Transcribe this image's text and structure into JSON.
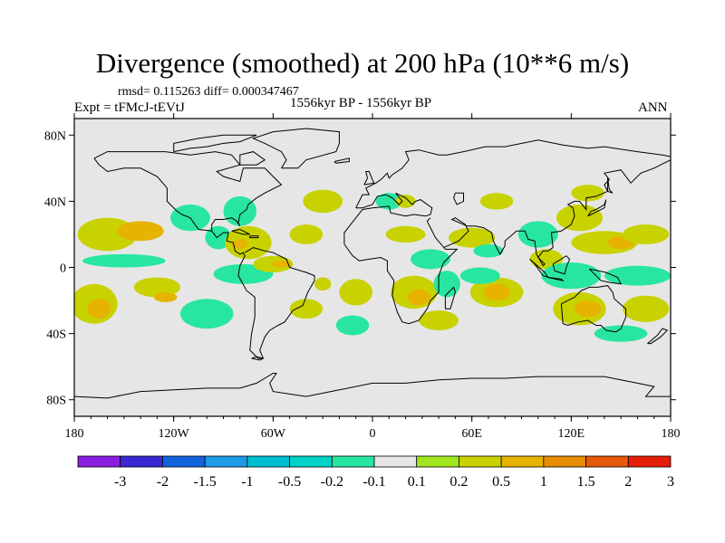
{
  "chart_data": {
    "type": "heatmap",
    "title": "Divergence (smoothed) at 200 hPa (10**6 m/s)",
    "stats": "rmsd= 0.115263 diff= 0.000347467",
    "experiment": "Expt = tFMcJ-tEVtJ",
    "period": "1556kyr BP - 1556kyr BP",
    "season": "ANN",
    "xlim": [
      -180,
      180
    ],
    "ylim": [
      -90,
      90
    ],
    "x_ticks": [
      {
        "value": -180,
        "label": "180"
      },
      {
        "value": -120,
        "label": "120W"
      },
      {
        "value": -60,
        "label": "60W"
      },
      {
        "value": 0,
        "label": "0"
      },
      {
        "value": 60,
        "label": "60E"
      },
      {
        "value": 120,
        "label": "120E"
      },
      {
        "value": 180,
        "label": "180"
      }
    ],
    "y_ticks": [
      {
        "value": 80,
        "label": "80N"
      },
      {
        "value": 40,
        "label": "40N"
      },
      {
        "value": 0,
        "label": "0"
      },
      {
        "value": -40,
        "label": "40S"
      },
      {
        "value": -80,
        "label": "80S"
      }
    ],
    "colorbar": {
      "labels": [
        "-3",
        "-2",
        "-1.5",
        "-1",
        "-0.5",
        "-0.2",
        "-0.1",
        "0.1",
        "0.2",
        "0.5",
        "1",
        "1.5",
        "2",
        "3"
      ],
      "colors": [
        "#8a1ee0",
        "#3c28d2",
        "#1464dc",
        "#1e9be6",
        "#00bed2",
        "#00d2c8",
        "#28e6a0",
        "#e6e6e6",
        "#a0e61e",
        "#c8d200",
        "#e6b400",
        "#e68c00",
        "#e65a0a",
        "#e61e0a"
      ]
    },
    "background_color": "#e6e6e6",
    "regions": [
      {
        "lon": -160,
        "lat": 20,
        "rx": 18,
        "ry": 10,
        "value": 0.2
      },
      {
        "lon": -140,
        "lat": 22,
        "rx": 14,
        "ry": 6,
        "value": 0.5
      },
      {
        "lon": -150,
        "lat": 4,
        "rx": 25,
        "ry": 4,
        "value": -0.2
      },
      {
        "lon": -168,
        "lat": -22,
        "rx": 14,
        "ry": 12,
        "value": 0.2
      },
      {
        "lon": -165,
        "lat": -25,
        "rx": 7,
        "ry": 6,
        "value": 0.5
      },
      {
        "lon": -130,
        "lat": -12,
        "rx": 14,
        "ry": 6,
        "value": 0.2
      },
      {
        "lon": -125,
        "lat": -18,
        "rx": 7,
        "ry": 3,
        "value": 0.5
      },
      {
        "lon": -100,
        "lat": -28,
        "rx": 16,
        "ry": 9,
        "value": -0.2
      },
      {
        "lon": -110,
        "lat": 30,
        "rx": 12,
        "ry": 8,
        "value": -0.2
      },
      {
        "lon": -93,
        "lat": 18,
        "rx": 8,
        "ry": 7,
        "value": -0.2
      },
      {
        "lon": -75,
        "lat": 15,
        "rx": 14,
        "ry": 10,
        "value": 0.2
      },
      {
        "lon": -80,
        "lat": 14,
        "rx": 5,
        "ry": 3,
        "value": 0.5
      },
      {
        "lon": -80,
        "lat": 34,
        "rx": 10,
        "ry": 9,
        "value": -0.2
      },
      {
        "lon": -78,
        "lat": -4,
        "rx": 18,
        "ry": 6,
        "value": -0.2
      },
      {
        "lon": -60,
        "lat": 2,
        "rx": 12,
        "ry": 5,
        "value": 0.2
      },
      {
        "lon": -55,
        "lat": 2,
        "rx": 6,
        "ry": 2,
        "value": 0.5
      },
      {
        "lon": -40,
        "lat": 20,
        "rx": 10,
        "ry": 6,
        "value": 0.2
      },
      {
        "lon": -30,
        "lat": 40,
        "rx": 12,
        "ry": 7,
        "value": 0.2
      },
      {
        "lon": -40,
        "lat": -25,
        "rx": 10,
        "ry": 6,
        "value": 0.2
      },
      {
        "lon": -30,
        "lat": -10,
        "rx": 5,
        "ry": 4,
        "value": 0.2
      },
      {
        "lon": -10,
        "lat": -15,
        "rx": 10,
        "ry": 8,
        "value": 0.2
      },
      {
        "lon": -12,
        "lat": -35,
        "rx": 10,
        "ry": 6,
        "value": -0.2
      },
      {
        "lon": 10,
        "lat": 40,
        "rx": 8,
        "ry": 5,
        "value": -0.2
      },
      {
        "lon": 20,
        "lat": 40,
        "rx": 6,
        "ry": 4,
        "value": 0.2
      },
      {
        "lon": 20,
        "lat": 20,
        "rx": 12,
        "ry": 5,
        "value": 0.2
      },
      {
        "lon": 35,
        "lat": 5,
        "rx": 12,
        "ry": 6,
        "value": -0.2
      },
      {
        "lon": 25,
        "lat": -15,
        "rx": 14,
        "ry": 10,
        "value": 0.2
      },
      {
        "lon": 28,
        "lat": -18,
        "rx": 7,
        "ry": 5,
        "value": 0.5
      },
      {
        "lon": 40,
        "lat": -32,
        "rx": 12,
        "ry": 6,
        "value": 0.2
      },
      {
        "lon": 45,
        "lat": -10,
        "rx": 8,
        "ry": 8,
        "value": -0.2
      },
      {
        "lon": 60,
        "lat": 18,
        "rx": 14,
        "ry": 6,
        "value": 0.2
      },
      {
        "lon": 70,
        "lat": 10,
        "rx": 9,
        "ry": 4,
        "value": -0.2
      },
      {
        "lon": 75,
        "lat": -15,
        "rx": 16,
        "ry": 9,
        "value": 0.2
      },
      {
        "lon": 75,
        "lat": -15,
        "rx": 8,
        "ry": 5,
        "value": 0.5
      },
      {
        "lon": 65,
        "lat": -5,
        "rx": 12,
        "ry": 5,
        "value": -0.2
      },
      {
        "lon": 75,
        "lat": 40,
        "rx": 10,
        "ry": 5,
        "value": 0.2
      },
      {
        "lon": 100,
        "lat": 20,
        "rx": 12,
        "ry": 8,
        "value": -0.2
      },
      {
        "lon": 105,
        "lat": 5,
        "rx": 10,
        "ry": 6,
        "value": 0.2
      },
      {
        "lon": 125,
        "lat": 30,
        "rx": 14,
        "ry": 8,
        "value": 0.2
      },
      {
        "lon": 140,
        "lat": 15,
        "rx": 20,
        "ry": 7,
        "value": 0.2
      },
      {
        "lon": 150,
        "lat": 15,
        "rx": 8,
        "ry": 4,
        "value": 0.5
      },
      {
        "lon": 130,
        "lat": 45,
        "rx": 10,
        "ry": 5,
        "value": 0.2
      },
      {
        "lon": 120,
        "lat": -5,
        "rx": 18,
        "ry": 8,
        "value": -0.2
      },
      {
        "lon": 125,
        "lat": -25,
        "rx": 16,
        "ry": 10,
        "value": 0.2
      },
      {
        "lon": 130,
        "lat": -25,
        "rx": 8,
        "ry": 5,
        "value": 0.5
      },
      {
        "lon": 160,
        "lat": -5,
        "rx": 20,
        "ry": 6,
        "value": -0.2
      },
      {
        "lon": 165,
        "lat": 20,
        "rx": 14,
        "ry": 6,
        "value": 0.2
      },
      {
        "lon": 165,
        "lat": -25,
        "rx": 14,
        "ry": 8,
        "value": 0.2
      },
      {
        "lon": 150,
        "lat": -40,
        "rx": 16,
        "ry": 5,
        "value": -0.2
      }
    ]
  }
}
